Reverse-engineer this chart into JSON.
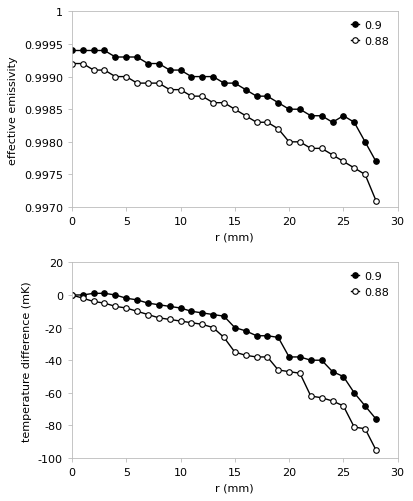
{
  "top": {
    "xlabel": "r (mm)",
    "ylabel": "effective emissivity",
    "xlim": [
      0,
      30
    ],
    "ylim": [
      0.997,
      1.0
    ],
    "yticks": [
      0.997,
      0.9975,
      0.998,
      0.9985,
      0.999,
      0.9995,
      1.0
    ],
    "xticks": [
      0,
      5,
      10,
      15,
      20,
      25,
      30
    ],
    "series": [
      {
        "label": "0.9",
        "fillstyle": "full",
        "x": [
          0,
          1,
          2,
          3,
          4,
          5,
          6,
          7,
          8,
          9,
          10,
          11,
          12,
          13,
          14,
          15,
          16,
          17,
          18,
          19,
          20,
          21,
          22,
          23,
          24,
          25,
          26,
          27,
          28
        ],
        "y": [
          0.9994,
          0.9994,
          0.9994,
          0.9994,
          0.9993,
          0.9993,
          0.9993,
          0.9992,
          0.9992,
          0.9991,
          0.9991,
          0.999,
          0.999,
          0.999,
          0.9989,
          0.9989,
          0.9988,
          0.9987,
          0.9987,
          0.9986,
          0.9985,
          0.9985,
          0.9984,
          0.9984,
          0.9983,
          0.9984,
          0.9983,
          0.998,
          0.9977
        ]
      },
      {
        "label": "0.88",
        "fillstyle": "none",
        "x": [
          0,
          1,
          2,
          3,
          4,
          5,
          6,
          7,
          8,
          9,
          10,
          11,
          12,
          13,
          14,
          15,
          16,
          17,
          18,
          19,
          20,
          21,
          22,
          23,
          24,
          25,
          26,
          27,
          28
        ],
        "y": [
          0.9992,
          0.9992,
          0.9991,
          0.9991,
          0.999,
          0.999,
          0.9989,
          0.9989,
          0.9989,
          0.9988,
          0.9988,
          0.9987,
          0.9987,
          0.9986,
          0.9986,
          0.9985,
          0.9984,
          0.9983,
          0.9983,
          0.9982,
          0.998,
          0.998,
          0.9979,
          0.9979,
          0.9978,
          0.9977,
          0.9976,
          0.9975,
          0.9971
        ]
      }
    ]
  },
  "bottom": {
    "xlabel": "r (mm)",
    "ylabel": "temperature difference (mK)",
    "xlim": [
      0,
      30
    ],
    "ylim": [
      -100,
      20
    ],
    "yticks": [
      -100,
      -80,
      -60,
      -40,
      -20,
      0,
      20
    ],
    "xticks": [
      0,
      5,
      10,
      15,
      20,
      25,
      30
    ],
    "series": [
      {
        "label": "0.9",
        "fillstyle": "full",
        "x": [
          0,
          1,
          2,
          3,
          4,
          5,
          6,
          7,
          8,
          9,
          10,
          11,
          12,
          13,
          14,
          15,
          16,
          17,
          18,
          19,
          20,
          21,
          22,
          23,
          24,
          25,
          26,
          27,
          28
        ],
        "y": [
          0,
          0,
          1,
          1,
          0,
          -2,
          -3,
          -5,
          -6,
          -7,
          -8,
          -10,
          -11,
          -12,
          -13,
          -20,
          -22,
          -25,
          -25,
          -26,
          -38,
          -38,
          -40,
          -40,
          -47,
          -50,
          -60,
          -68,
          -76
        ]
      },
      {
        "label": "0.88",
        "fillstyle": "none",
        "x": [
          0,
          1,
          2,
          3,
          4,
          5,
          6,
          7,
          8,
          9,
          10,
          11,
          12,
          13,
          14,
          15,
          16,
          17,
          18,
          19,
          20,
          21,
          22,
          23,
          24,
          25,
          26,
          27,
          28
        ],
        "y": [
          0,
          -2,
          -4,
          -5,
          -7,
          -8,
          -10,
          -12,
          -14,
          -15,
          -16,
          -17,
          -18,
          -20,
          -26,
          -35,
          -37,
          -38,
          -38,
          -46,
          -47,
          -48,
          -62,
          -63,
          -65,
          -68,
          -81,
          -82,
          -95
        ]
      }
    ]
  },
  "legend_loc": "upper right",
  "marker_size": 4,
  "linewidth": 1.0,
  "color": "#000000",
  "bg_color": "#ffffff",
  "spine_color": "#bbbbbb",
  "tick_label_size": 8,
  "axis_label_size": 8
}
